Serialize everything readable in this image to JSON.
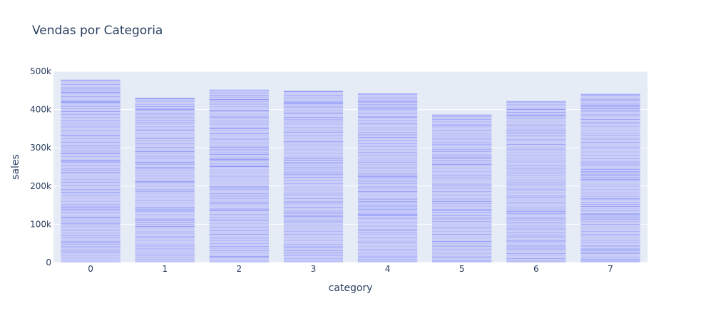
{
  "chart_data": {
    "type": "bar",
    "title": "Vendas por Categoria",
    "xlabel": "category",
    "ylabel": "sales",
    "categories": [
      "0",
      "1",
      "2",
      "3",
      "4",
      "5",
      "6",
      "7"
    ],
    "values": [
      478000,
      431000,
      452000,
      449000,
      442000,
      387000,
      422000,
      441000
    ],
    "ylim": [
      0,
      500000
    ],
    "y_ticks": [
      0,
      100000,
      200000,
      300000,
      400000,
      500000
    ],
    "y_tick_labels": [
      "0",
      "100k",
      "200k",
      "300k",
      "400k",
      "500k"
    ],
    "grid": true,
    "legend": "none",
    "colors": {
      "plot_background": "#e5ecf6",
      "bar_fill": "#c9cdf7",
      "bar_lines": "#636efa",
      "grid": "#ffffff",
      "text": "#2a3f5f"
    }
  }
}
